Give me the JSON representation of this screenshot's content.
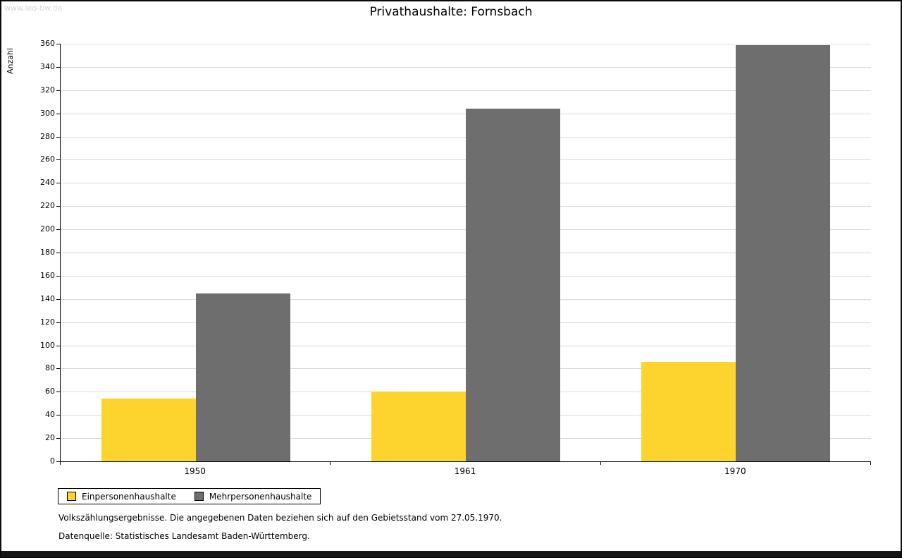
{
  "watermark": "www.leo-bw.de",
  "title": "Privathaushalte: Fornsbach",
  "chart_data": {
    "type": "bar",
    "categories": [
      "1950",
      "1961",
      "1970"
    ],
    "series": [
      {
        "name": "Einpersonenhaushalte",
        "color": "#fcd42d",
        "values": [
          54,
          60,
          86
        ]
      },
      {
        "name": "Mehrpersonenhaushalte",
        "color": "#6e6e6e",
        "values": [
          145,
          304,
          359
        ]
      }
    ],
    "title": "Privathaushalte: Fornsbach",
    "xlabel": "",
    "ylabel": "Anzahl",
    "ylim": [
      0,
      360
    ],
    "ytick": 20,
    "grid": true,
    "legend_position": "bottom-left"
  },
  "footnotes": [
    "Volkszählungsergebnisse. Die angegebenen Daten beziehen sich auf den Gebietsstand vom 27.05.1970.",
    "Datenquelle: Statistisches Landesamt Baden-Württemberg."
  ]
}
